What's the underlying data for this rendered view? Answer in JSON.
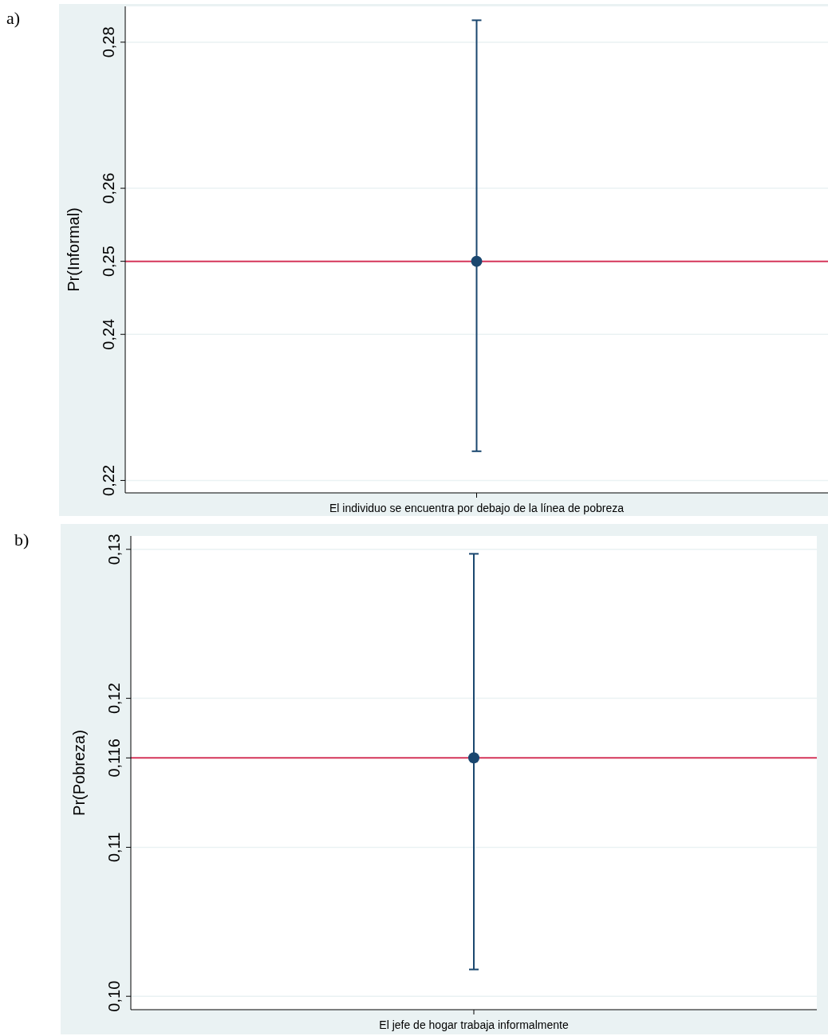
{
  "chart_data": [
    {
      "type": "scatter",
      "title": "a)",
      "ylabel": "Pr(Informal)",
      "categories": [
        "El individuo se encuentra por debajo de la línea de pobreza"
      ],
      "values": [
        0.25
      ],
      "errors": [
        [
          0.224,
          0.283
        ]
      ],
      "color": "#1a476f",
      "marker": "circle",
      "ylim": [
        0.2183,
        0.2849
      ],
      "yticks": [
        {
          "value": 0.22,
          "label": "0,22"
        },
        {
          "value": 0.24,
          "label": "0,24"
        },
        {
          "value": 0.25,
          "label": "0,25"
        },
        {
          "value": 0.26,
          "label": "0,26"
        },
        {
          "value": 0.28,
          "label": "0,28"
        }
      ],
      "grid": "y",
      "ref_lines": [
        {
          "axis": "y",
          "value": 0.25,
          "color": "#d6365a"
        }
      ]
    },
    {
      "type": "scatter",
      "title": "b)",
      "ylabel": "Pr(Pobreza)",
      "categories": [
        "El jefe de hogar trabaja informalmente"
      ],
      "values": [
        0.116
      ],
      "errors": [
        [
          0.1018,
          0.1297
        ]
      ],
      "color": "#1a476f",
      "marker": "circle",
      "ylim": [
        0.0991,
        0.1309
      ],
      "yticks": [
        {
          "value": 0.1,
          "label": "0,10"
        },
        {
          "value": 0.11,
          "label": "0,11"
        },
        {
          "value": 0.116,
          "label": "0,116"
        },
        {
          "value": 0.12,
          "label": "0,12"
        },
        {
          "value": 0.13,
          "label": "0,13"
        }
      ],
      "grid": "y",
      "ref_lines": [
        {
          "axis": "y",
          "value": 0.116,
          "color": "#d6365a"
        }
      ]
    }
  ]
}
